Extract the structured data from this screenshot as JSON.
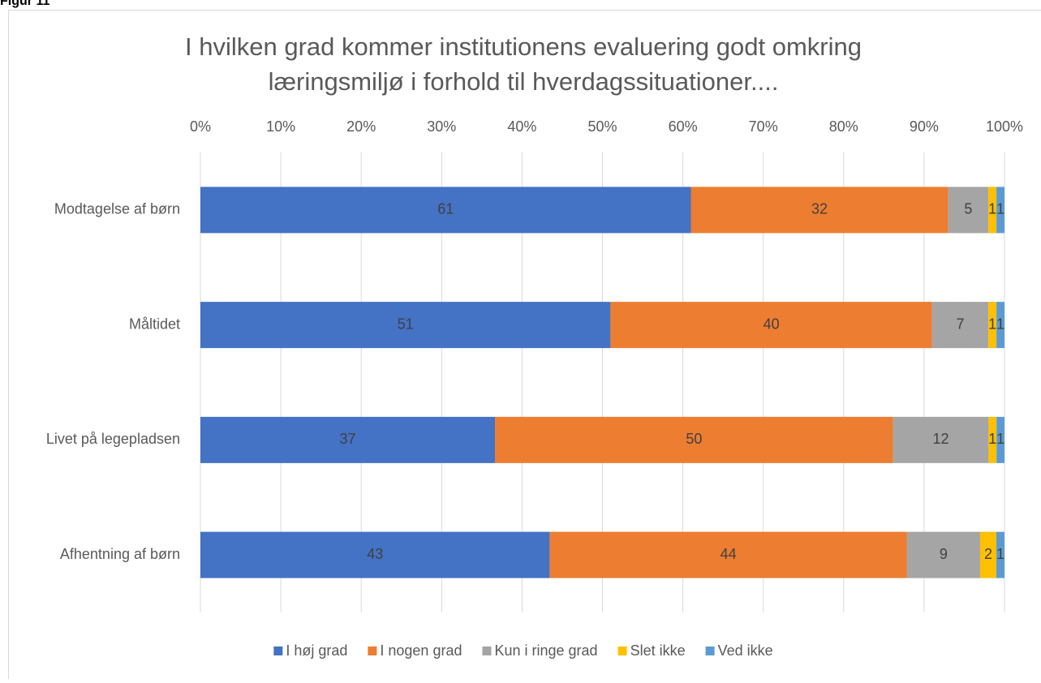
{
  "figure_label": "Figur 11",
  "chart_data": {
    "type": "bar",
    "orientation": "horizontal",
    "stacked": "percent",
    "title": [
      "I hvilken grad kommer institutionens evaluering godt omkring",
      "læringsmiljø i forhold til hverdagssituationer...."
    ],
    "categories": [
      "Modtagelse af børn",
      "Måltidet",
      "Livet på legepladsen",
      "Afhentning af børn"
    ],
    "series": [
      {
        "name": "I høj grad",
        "color": "#4472c4",
        "values": [
          61,
          51,
          37,
          43
        ]
      },
      {
        "name": "I nogen grad",
        "color": "#ed7d31",
        "values": [
          32,
          40,
          50,
          44
        ]
      },
      {
        "name": "Kun i ringe grad",
        "color": "#a5a5a5",
        "values": [
          5,
          7,
          12,
          9
        ]
      },
      {
        "name": "Slet ikke",
        "color": "#ffc000",
        "values": [
          1,
          1,
          1,
          2
        ]
      },
      {
        "name": "Ved ikke",
        "color": "#5b9bd5",
        "values": [
          1,
          1,
          1,
          1
        ]
      }
    ],
    "xlim": [
      0,
      100
    ],
    "xticks": [
      {
        "value": 0,
        "label": "0%"
      },
      {
        "value": 10,
        "label": "10%"
      },
      {
        "value": 20,
        "label": "20%"
      },
      {
        "value": 30,
        "label": "30%"
      },
      {
        "value": 40,
        "label": "40%"
      },
      {
        "value": 50,
        "label": "50%"
      },
      {
        "value": 60,
        "label": "60%"
      },
      {
        "value": 70,
        "label": "70%"
      },
      {
        "value": 80,
        "label": "80%"
      },
      {
        "value": 90,
        "label": "90%"
      },
      {
        "value": 100,
        "label": "100%"
      }
    ],
    "grid": true,
    "legend": "bottom"
  }
}
